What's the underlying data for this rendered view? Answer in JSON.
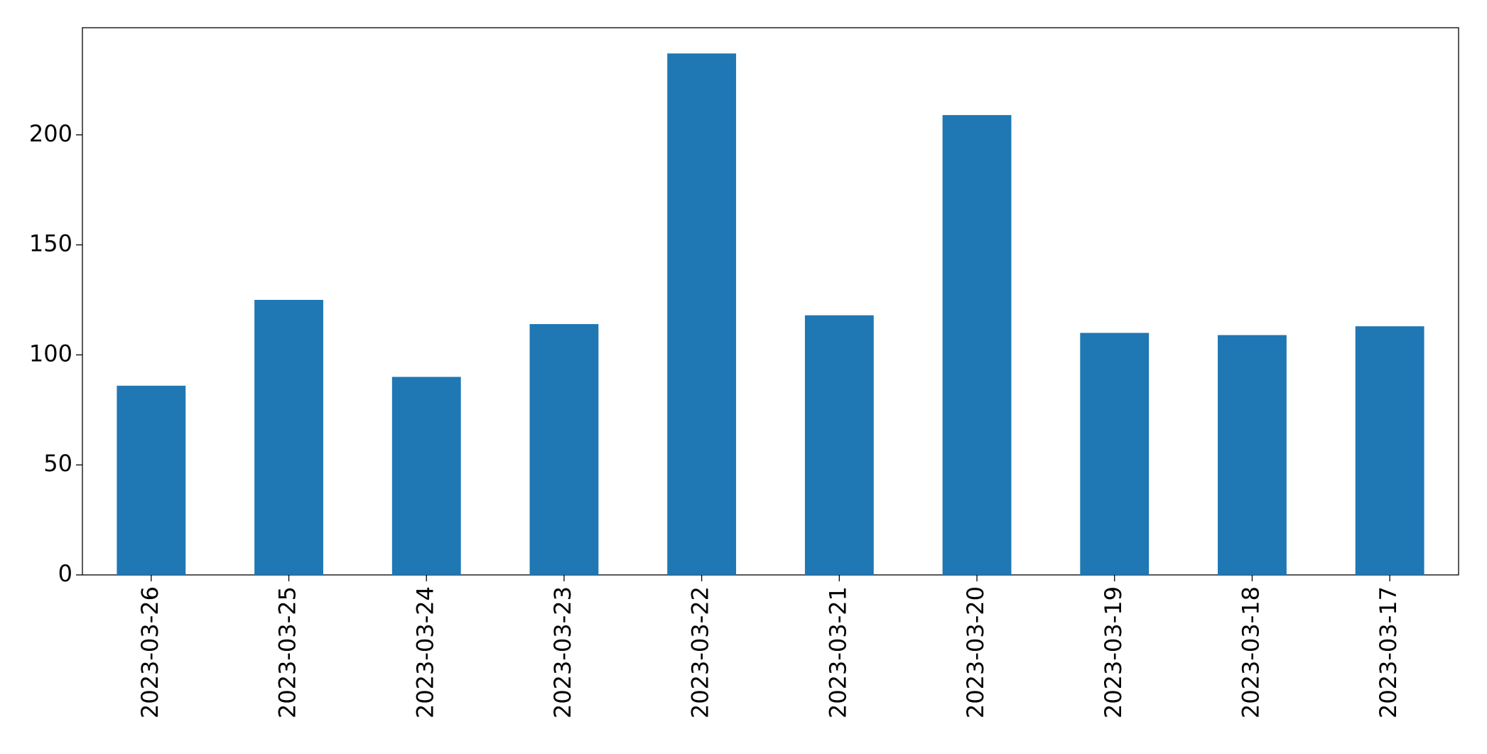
{
  "chart_data": {
    "type": "bar",
    "categories": [
      "2023-03-26",
      "2023-03-25",
      "2023-03-24",
      "2023-03-23",
      "2023-03-22",
      "2023-03-21",
      "2023-03-20",
      "2023-03-19",
      "2023-03-18",
      "2023-03-17"
    ],
    "values": [
      86,
      125,
      90,
      114,
      237,
      118,
      209,
      110,
      109,
      113
    ],
    "color": "#1f77b4",
    "ylim": [
      0,
      248.7
    ],
    "yticks": [
      0,
      50,
      100,
      150,
      200
    ],
    "grid": false
  }
}
